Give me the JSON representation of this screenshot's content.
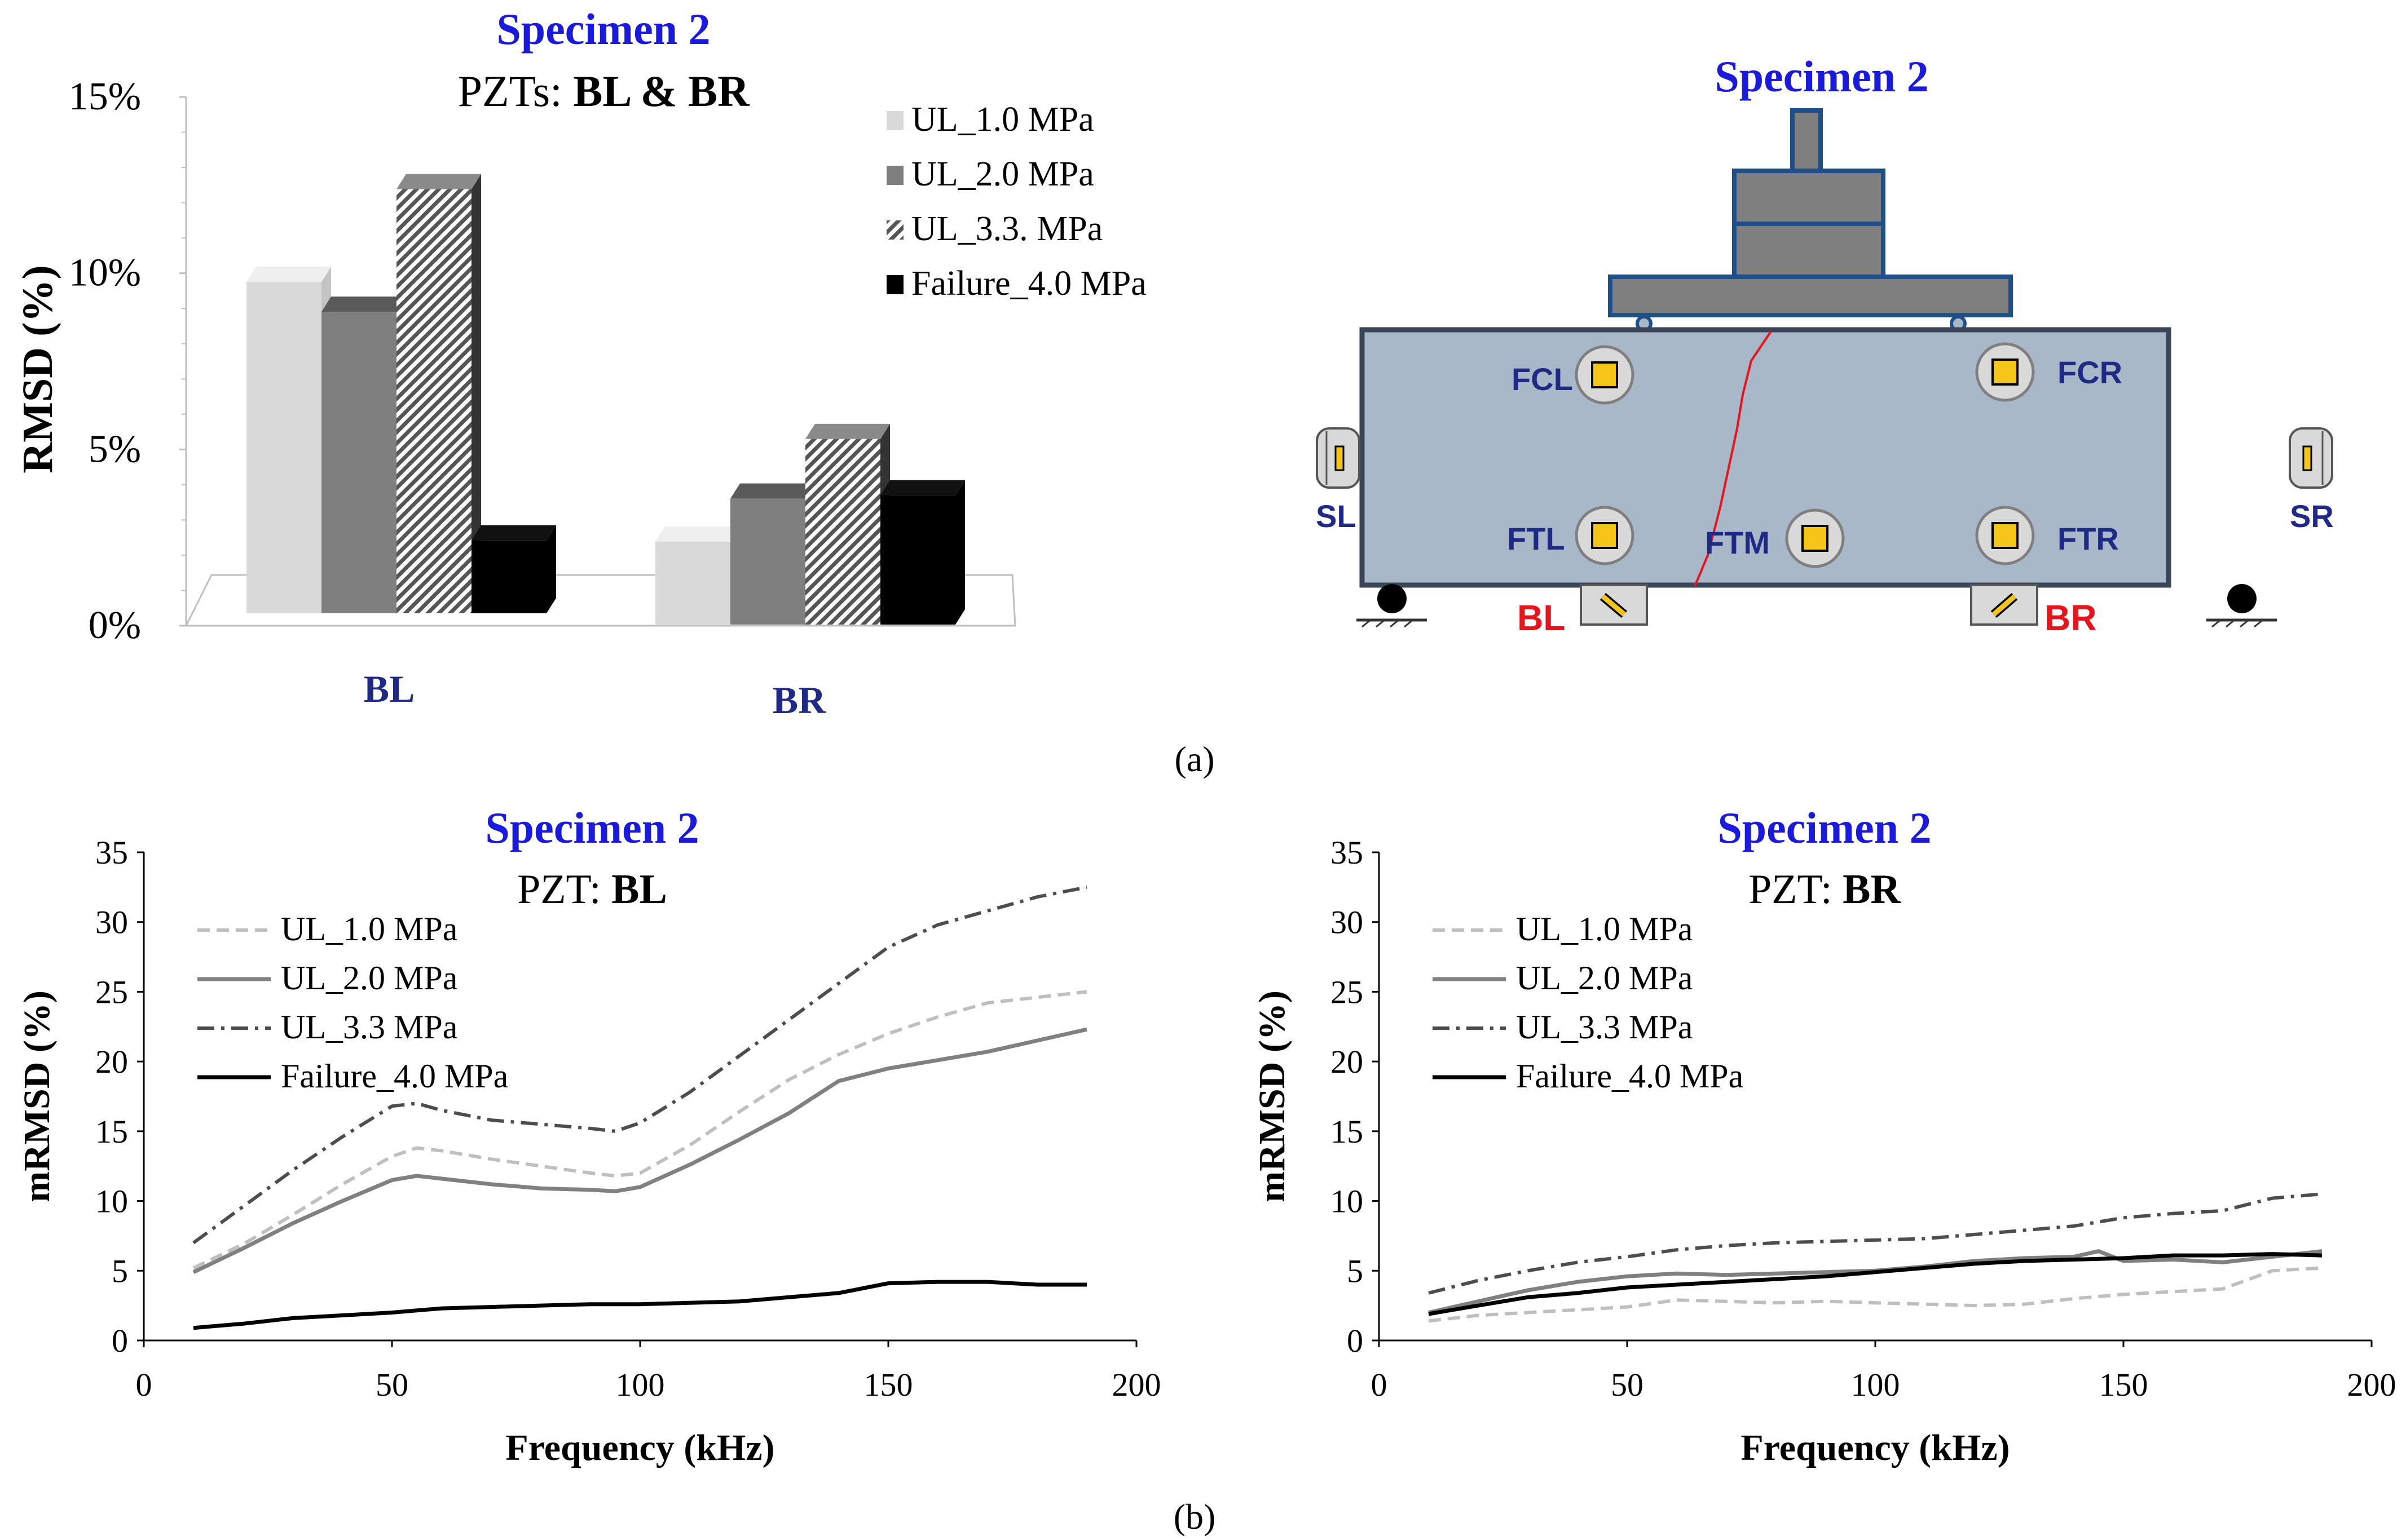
{
  "colors": {
    "title_blue": "#1a1adc",
    "label_navy": "#1f2a86",
    "label_red": "#e8141c",
    "beam_fill": "#a9b8c9",
    "beam_stroke": "#3a4658",
    "plate_fill": "#7f7f7f",
    "plate_stroke": "#1f4f8a",
    "pzt_yellow": "#f5c518",
    "crack_red": "#e8141c"
  },
  "panel_labels": {
    "a": "(a)",
    "b": "(b)"
  },
  "chart_data": [
    {
      "type": "bar",
      "title": "Specimen 2",
      "subtitle_prefix": "PZTs: ",
      "subtitle_bold": "BL & BR",
      "xlabel": "",
      "ylabel": "RMSD (%)",
      "categories": [
        "BL",
        "BR"
      ],
      "series": [
        {
          "name": "UL_1.0 MPa",
          "values": [
            10.0,
            2.5
          ],
          "fill": "#d9d9d9"
        },
        {
          "name": "UL_2.0 MPa",
          "values": [
            9.1,
            3.8
          ],
          "fill": "#7f7f7f"
        },
        {
          "name": "UL_3.3. MPa",
          "values": [
            12.8,
            5.6
          ],
          "fill": "hatch"
        },
        {
          "name": "Failure_4.0 MPa",
          "values": [
            2.2,
            3.9
          ],
          "fill": "#000000"
        }
      ],
      "yticks": [
        "0%",
        "5%",
        "10%",
        "15%"
      ],
      "ylim": [
        0,
        15
      ],
      "legend": "top-right"
    },
    {
      "type": "line",
      "title": "Specimen 2",
      "subtitle_prefix": "PZT: ",
      "subtitle_bold": "BL",
      "xlabel": "Frequency (kHz)",
      "ylabel": "mRMSD (%)",
      "xlim": [
        0,
        200
      ],
      "ylim": [
        0,
        35
      ],
      "xticks": [
        "0",
        "50",
        "100",
        "150",
        "200"
      ],
      "yticks": [
        "0",
        "5",
        "10",
        "15",
        "20",
        "25",
        "30",
        "35"
      ],
      "legend": "top-left",
      "series": [
        {
          "name": "UL_1.0 MPa",
          "style": "dashed-light",
          "x": [
            10,
            20,
            30,
            40,
            50,
            55,
            60,
            70,
            80,
            90,
            95,
            100,
            110,
            120,
            130,
            140,
            150,
            160,
            170,
            180,
            190
          ],
          "y": [
            5.2,
            6.9,
            9.0,
            11.2,
            13.2,
            13.8,
            13.6,
            13.0,
            12.5,
            12.0,
            11.8,
            12.0,
            14.0,
            16.4,
            18.7,
            20.5,
            22.0,
            23.2,
            24.2,
            24.6,
            25.0
          ]
        },
        {
          "name": "UL_2.0 MPa",
          "style": "solid-gray",
          "x": [
            10,
            20,
            30,
            40,
            50,
            55,
            60,
            70,
            80,
            90,
            95,
            100,
            110,
            120,
            130,
            140,
            150,
            160,
            170,
            180,
            190
          ],
          "y": [
            4.9,
            6.6,
            8.4,
            10.0,
            11.5,
            11.8,
            11.6,
            11.2,
            10.9,
            10.8,
            10.7,
            11.0,
            12.6,
            14.4,
            16.3,
            18.6,
            19.5,
            20.1,
            20.7,
            21.5,
            22.3
          ]
        },
        {
          "name": "UL_3.3 MPa",
          "style": "dashdot-dark",
          "x": [
            10,
            20,
            30,
            40,
            50,
            55,
            60,
            70,
            80,
            90,
            95,
            100,
            110,
            120,
            130,
            140,
            150,
            160,
            170,
            180,
            190
          ],
          "y": [
            7.0,
            9.6,
            12.2,
            14.6,
            16.8,
            17.0,
            16.5,
            15.8,
            15.5,
            15.2,
            15.0,
            15.6,
            17.8,
            20.4,
            23.0,
            25.6,
            28.2,
            29.8,
            30.8,
            31.8,
            32.5
          ]
        },
        {
          "name": "Failure_4.0 MPa",
          "style": "solid-black",
          "x": [
            10,
            20,
            30,
            40,
            50,
            60,
            70,
            80,
            90,
            100,
            110,
            120,
            130,
            140,
            150,
            160,
            170,
            180,
            190
          ],
          "y": [
            0.9,
            1.2,
            1.6,
            1.8,
            2.0,
            2.3,
            2.4,
            2.5,
            2.6,
            2.6,
            2.7,
            2.8,
            3.1,
            3.4,
            4.1,
            4.2,
            4.2,
            4.0,
            4.0
          ]
        }
      ]
    },
    {
      "type": "line",
      "title": "Specimen 2",
      "subtitle_prefix": "PZT: ",
      "subtitle_bold": "BR",
      "xlabel": "Frequency (kHz)",
      "ylabel": "mRMSD (%)",
      "xlim": [
        0,
        200
      ],
      "ylim": [
        0,
        35
      ],
      "xticks": [
        "0",
        "50",
        "100",
        "150",
        "200"
      ],
      "yticks": [
        "0",
        "5",
        "10",
        "15",
        "20",
        "25",
        "30",
        "35"
      ],
      "legend": "top-left",
      "series": [
        {
          "name": "UL_1.0 MPa",
          "style": "dashed-light",
          "x": [
            10,
            20,
            30,
            40,
            50,
            60,
            70,
            80,
            90,
            100,
            110,
            120,
            130,
            140,
            150,
            160,
            170,
            180,
            190
          ],
          "y": [
            1.4,
            1.8,
            2.0,
            2.2,
            2.4,
            2.9,
            2.8,
            2.7,
            2.8,
            2.7,
            2.6,
            2.5,
            2.6,
            3.0,
            3.3,
            3.5,
            3.7,
            5.0,
            5.2
          ]
        },
        {
          "name": "UL_2.0 MPa",
          "style": "solid-gray",
          "x": [
            10,
            20,
            30,
            40,
            50,
            60,
            70,
            80,
            90,
            100,
            110,
            120,
            130,
            140,
            145,
            150,
            160,
            170,
            180,
            190
          ],
          "y": [
            2.0,
            2.8,
            3.6,
            4.2,
            4.6,
            4.8,
            4.7,
            4.8,
            4.9,
            5.0,
            5.3,
            5.7,
            5.9,
            6.0,
            6.4,
            5.7,
            5.8,
            5.6,
            6.0,
            6.4
          ]
        },
        {
          "name": "UL_3.3 MPa",
          "style": "dashdot-dark",
          "x": [
            10,
            20,
            30,
            40,
            50,
            60,
            70,
            80,
            90,
            100,
            110,
            120,
            130,
            140,
            150,
            160,
            170,
            180,
            190
          ],
          "y": [
            3.4,
            4.3,
            5.0,
            5.6,
            6.0,
            6.5,
            6.8,
            7.0,
            7.1,
            7.2,
            7.3,
            7.6,
            7.9,
            8.2,
            8.8,
            9.1,
            9.3,
            10.2,
            10.5
          ]
        },
        {
          "name": "Failure_4.0 MPa",
          "style": "solid-black",
          "x": [
            10,
            20,
            30,
            40,
            50,
            60,
            70,
            80,
            90,
            100,
            110,
            120,
            130,
            140,
            150,
            160,
            170,
            180,
            190
          ],
          "y": [
            1.9,
            2.5,
            3.1,
            3.4,
            3.8,
            4.0,
            4.2,
            4.4,
            4.6,
            4.9,
            5.2,
            5.5,
            5.7,
            5.8,
            5.9,
            6.1,
            6.1,
            6.2,
            6.1
          ]
        }
      ]
    }
  ],
  "diagram": {
    "title": "Specimen 2",
    "sensor_labels": {
      "FCL": "FCL",
      "FCR": "FCR",
      "FTL": "FTL",
      "FTM": "FTM",
      "FTR": "FTR",
      "SL": "SL",
      "SR": "SR",
      "BL": "BL",
      "BR": "BR"
    }
  }
}
